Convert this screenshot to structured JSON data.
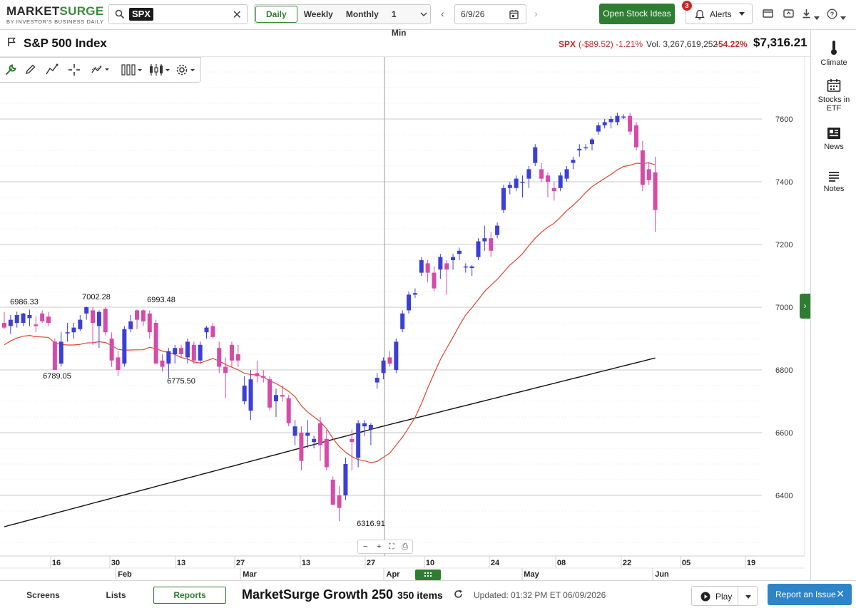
{
  "app": {
    "logo_part1": "MARKET",
    "logo_part2": "SURGE",
    "logo_sub": "BY INVESTOR'S BUSINESS DAILY"
  },
  "toolbar": {
    "symbol": "SPX",
    "periods": [
      "Daily",
      "Weekly",
      "Monthly",
      "1 Min"
    ],
    "active_period": "Daily",
    "date": "6/9/26",
    "open_ideas_label": "Open Stock Ideas",
    "alerts_label": "Alerts",
    "alerts_count": "3"
  },
  "header": {
    "title": "S&P 500 Index",
    "symbol": "SPX",
    "change": "(-$89.52) -1.21%",
    "volume": "Vol. 3,267,619,252",
    "volume_pct": "-54.22%",
    "price": "$7,316.21"
  },
  "right_panel": {
    "items": [
      "Climate",
      "Stocks in ETF",
      "News",
      "Notes"
    ]
  },
  "bottom": {
    "tabs": [
      "Screens",
      "Lists",
      "Reports"
    ],
    "active_tab": "Reports",
    "list_name": "MarketSurge Growth 250",
    "list_count": "350 items",
    "updated": "Updated: 01:32 PM ET 06/09/2026",
    "play_label": "Play",
    "report_label": "Report an Issue"
  },
  "colors": {
    "accent": "#2e7d32",
    "up_candle": "#3b3fd6",
    "down_candle": "#d64aa8",
    "ma_short": "#e0442c",
    "ma_long": "#111111",
    "negative": "#c62828"
  },
  "chart_data": {
    "type": "candlestick",
    "y_ticks": [
      6400,
      6600,
      6800,
      7000,
      7200,
      7400,
      7600
    ],
    "ylim": [
      6220,
      7760
    ],
    "x_labels": [
      "16",
      "30",
      "13",
      "27",
      "13",
      "27",
      "10",
      "24",
      "08",
      "22",
      "05",
      "19"
    ],
    "month_labels": [
      "Feb",
      "Mar",
      "Apr",
      "May",
      "Jun"
    ],
    "annotations": [
      "6986.33",
      "7002.28",
      "6993.48",
      "6789.05",
      "6775.50",
      "6316.91"
    ],
    "candles": [
      {
        "o": 6950,
        "h": 6985,
        "l": 6930,
        "c": 6935
      },
      {
        "o": 6940,
        "h": 6975,
        "l": 6915,
        "c": 6960
      },
      {
        "o": 6950,
        "h": 6986,
        "l": 6935,
        "c": 6975
      },
      {
        "o": 6950,
        "h": 6982,
        "l": 6940,
        "c": 6980
      },
      {
        "o": 6965,
        "h": 6992,
        "l": 6940,
        "c": 6975
      },
      {
        "o": 6945,
        "h": 6970,
        "l": 6920,
        "c": 6940
      },
      {
        "o": 6980,
        "h": 6990,
        "l": 6950,
        "c": 6955
      },
      {
        "o": 6970,
        "h": 6985,
        "l": 6940,
        "c": 6950
      },
      {
        "o": 6890,
        "h": 6900,
        "l": 6800,
        "c": 6800
      },
      {
        "o": 6820,
        "h": 6920,
        "l": 6810,
        "c": 6890
      },
      {
        "o": 6920,
        "h": 6950,
        "l": 6890,
        "c": 6920
      },
      {
        "o": 6920,
        "h": 6950,
        "l": 6900,
        "c": 6935
      },
      {
        "o": 6930,
        "h": 6975,
        "l": 6925,
        "c": 6960
      },
      {
        "o": 6980,
        "h": 7002,
        "l": 6960,
        "c": 7000
      },
      {
        "o": 6990,
        "h": 7000,
        "l": 6880,
        "c": 6950
      },
      {
        "o": 6940,
        "h": 6990,
        "l": 6870,
        "c": 6985
      },
      {
        "o": 6995,
        "h": 7000,
        "l": 6910,
        "c": 6920
      },
      {
        "o": 6900,
        "h": 6920,
        "l": 6810,
        "c": 6830
      },
      {
        "o": 6840,
        "h": 6860,
        "l": 6780,
        "c": 6800
      },
      {
        "o": 6820,
        "h": 6940,
        "l": 6810,
        "c": 6930
      },
      {
        "o": 6930,
        "h": 6975,
        "l": 6920,
        "c": 6955
      },
      {
        "o": 6990,
        "h": 6993,
        "l": 6930,
        "c": 6960
      },
      {
        "o": 6990,
        "h": 6993,
        "l": 6940,
        "c": 6955
      },
      {
        "o": 6980,
        "h": 6990,
        "l": 6900,
        "c": 6920
      },
      {
        "o": 6950,
        "h": 6960,
        "l": 6820,
        "c": 6820
      },
      {
        "o": 6830,
        "h": 6850,
        "l": 6795,
        "c": 6810
      },
      {
        "o": 6820,
        "h": 6870,
        "l": 6775,
        "c": 6860
      },
      {
        "o": 6850,
        "h": 6880,
        "l": 6820,
        "c": 6870
      },
      {
        "o": 6870,
        "h": 6880,
        "l": 6840,
        "c": 6850
      },
      {
        "o": 6840,
        "h": 6900,
        "l": 6820,
        "c": 6890
      },
      {
        "o": 6880,
        "h": 6890,
        "l": 6820,
        "c": 6830
      },
      {
        "o": 6830,
        "h": 6890,
        "l": 6820,
        "c": 6880
      },
      {
        "o": 6920,
        "h": 6940,
        "l": 6900,
        "c": 6935
      },
      {
        "o": 6940,
        "h": 6950,
        "l": 6900,
        "c": 6905
      },
      {
        "o": 6870,
        "h": 6890,
        "l": 6790,
        "c": 6810
      },
      {
        "o": 6810,
        "h": 6840,
        "l": 6710,
        "c": 6790
      },
      {
        "o": 6880,
        "h": 6890,
        "l": 6810,
        "c": 6830
      },
      {
        "o": 6850,
        "h": 6880,
        "l": 6810,
        "c": 6830
      },
      {
        "o": 6700,
        "h": 6780,
        "l": 6690,
        "c": 6750
      },
      {
        "o": 6670,
        "h": 6800,
        "l": 6640,
        "c": 6770
      },
      {
        "o": 6790,
        "h": 6830,
        "l": 6760,
        "c": 6780
      },
      {
        "o": 6780,
        "h": 6800,
        "l": 6760,
        "c": 6775
      },
      {
        "o": 6770,
        "h": 6780,
        "l": 6670,
        "c": 6680
      },
      {
        "o": 6700,
        "h": 6740,
        "l": 6650,
        "c": 6720
      },
      {
        "o": 6720,
        "h": 6750,
        "l": 6700,
        "c": 6715
      },
      {
        "o": 6710,
        "h": 6720,
        "l": 6620,
        "c": 6630
      },
      {
        "o": 6590,
        "h": 6640,
        "l": 6560,
        "c": 6620
      },
      {
        "o": 6600,
        "h": 6620,
        "l": 6480,
        "c": 6510
      },
      {
        "o": 6590,
        "h": 6640,
        "l": 6550,
        "c": 6600
      },
      {
        "o": 6570,
        "h": 6590,
        "l": 6550,
        "c": 6580
      },
      {
        "o": 6630,
        "h": 6650,
        "l": 6510,
        "c": 6560
      },
      {
        "o": 6580,
        "h": 6610,
        "l": 6480,
        "c": 6490
      },
      {
        "o": 6450,
        "h": 6460,
        "l": 6370,
        "c": 6370
      },
      {
        "o": 6400,
        "h": 6430,
        "l": 6317,
        "c": 6360
      },
      {
        "o": 6400,
        "h": 6520,
        "l": 6385,
        "c": 6500
      },
      {
        "o": 6580,
        "h": 6610,
        "l": 6480,
        "c": 6570
      },
      {
        "o": 6520,
        "h": 6640,
        "l": 6490,
        "c": 6630
      },
      {
        "o": 6620,
        "h": 6640,
        "l": 6590,
        "c": 6630
      },
      {
        "o": 6610,
        "h": 6630,
        "l": 6560,
        "c": 6625
      },
      {
        "o": 6760,
        "h": 6790,
        "l": 6740,
        "c": 6775
      },
      {
        "o": 6790,
        "h": 6840,
        "l": 6770,
        "c": 6830
      },
      {
        "o": 6840,
        "h": 6860,
        "l": 6810,
        "c": 6820
      },
      {
        "o": 6800,
        "h": 6900,
        "l": 6790,
        "c": 6890
      },
      {
        "o": 6930,
        "h": 6990,
        "l": 6920,
        "c": 6980
      },
      {
        "o": 6990,
        "h": 7050,
        "l": 6980,
        "c": 7040
      },
      {
        "o": 7040,
        "h": 7060,
        "l": 7030,
        "c": 7045
      },
      {
        "o": 7110,
        "h": 7160,
        "l": 7100,
        "c": 7150
      },
      {
        "o": 7140,
        "h": 7150,
        "l": 7080,
        "c": 7110
      },
      {
        "o": 7110,
        "h": 7130,
        "l": 7050,
        "c": 7060
      },
      {
        "o": 7120,
        "h": 7170,
        "l": 7090,
        "c": 7160
      },
      {
        "o": 7140,
        "h": 7150,
        "l": 7040,
        "c": 7120
      },
      {
        "o": 7150,
        "h": 7170,
        "l": 7120,
        "c": 7160
      },
      {
        "o": 7170,
        "h": 7190,
        "l": 7150,
        "c": 7180
      },
      {
        "o": 7130,
        "h": 7140,
        "l": 7110,
        "c": 7130
      },
      {
        "o": 7125,
        "h": 7135,
        "l": 7100,
        "c": 7130
      },
      {
        "o": 7160,
        "h": 7220,
        "l": 7150,
        "c": 7210
      },
      {
        "o": 7210,
        "h": 7260,
        "l": 7180,
        "c": 7220
      },
      {
        "o": 7220,
        "h": 7240,
        "l": 7160,
        "c": 7180
      },
      {
        "o": 7230,
        "h": 7270,
        "l": 7220,
        "c": 7260
      },
      {
        "o": 7310,
        "h": 7390,
        "l": 7300,
        "c": 7380
      },
      {
        "o": 7380,
        "h": 7400,
        "l": 7360,
        "c": 7390
      },
      {
        "o": 7380,
        "h": 7420,
        "l": 7370,
        "c": 7410
      },
      {
        "o": 7400,
        "h": 7420,
        "l": 7350,
        "c": 7400
      },
      {
        "o": 7410,
        "h": 7450,
        "l": 7380,
        "c": 7440
      },
      {
        "o": 7460,
        "h": 7520,
        "l": 7450,
        "c": 7510
      },
      {
        "o": 7440,
        "h": 7460,
        "l": 7400,
        "c": 7410
      },
      {
        "o": 7420,
        "h": 7430,
        "l": 7350,
        "c": 7400
      },
      {
        "o": 7380,
        "h": 7400,
        "l": 7340,
        "c": 7370
      },
      {
        "o": 7380,
        "h": 7430,
        "l": 7370,
        "c": 7420
      },
      {
        "o": 7410,
        "h": 7450,
        "l": 7400,
        "c": 7440
      },
      {
        "o": 7460,
        "h": 7480,
        "l": 7440,
        "c": 7470
      },
      {
        "o": 7500,
        "h": 7520,
        "l": 7480,
        "c": 7505
      },
      {
        "o": 7510,
        "h": 7520,
        "l": 7500,
        "c": 7510
      },
      {
        "o": 7520,
        "h": 7540,
        "l": 7500,
        "c": 7535
      },
      {
        "o": 7560,
        "h": 7590,
        "l": 7550,
        "c": 7580
      },
      {
        "o": 7580,
        "h": 7600,
        "l": 7570,
        "c": 7590
      },
      {
        "o": 7590,
        "h": 7610,
        "l": 7570,
        "c": 7600
      },
      {
        "o": 7590,
        "h": 7620,
        "l": 7580,
        "c": 7610
      },
      {
        "o": 7605,
        "h": 7615,
        "l": 7600,
        "c": 7608
      },
      {
        "o": 7610,
        "h": 7620,
        "l": 7550,
        "c": 7560
      },
      {
        "o": 7580,
        "h": 7590,
        "l": 7500,
        "c": 7510
      },
      {
        "o": 7500,
        "h": 7530,
        "l": 7370,
        "c": 7390
      },
      {
        "o": 7440,
        "h": 7460,
        "l": 7390,
        "c": 7405
      },
      {
        "o": 7430,
        "h": 7480,
        "l": 7240,
        "c": 7310
      }
    ]
  }
}
